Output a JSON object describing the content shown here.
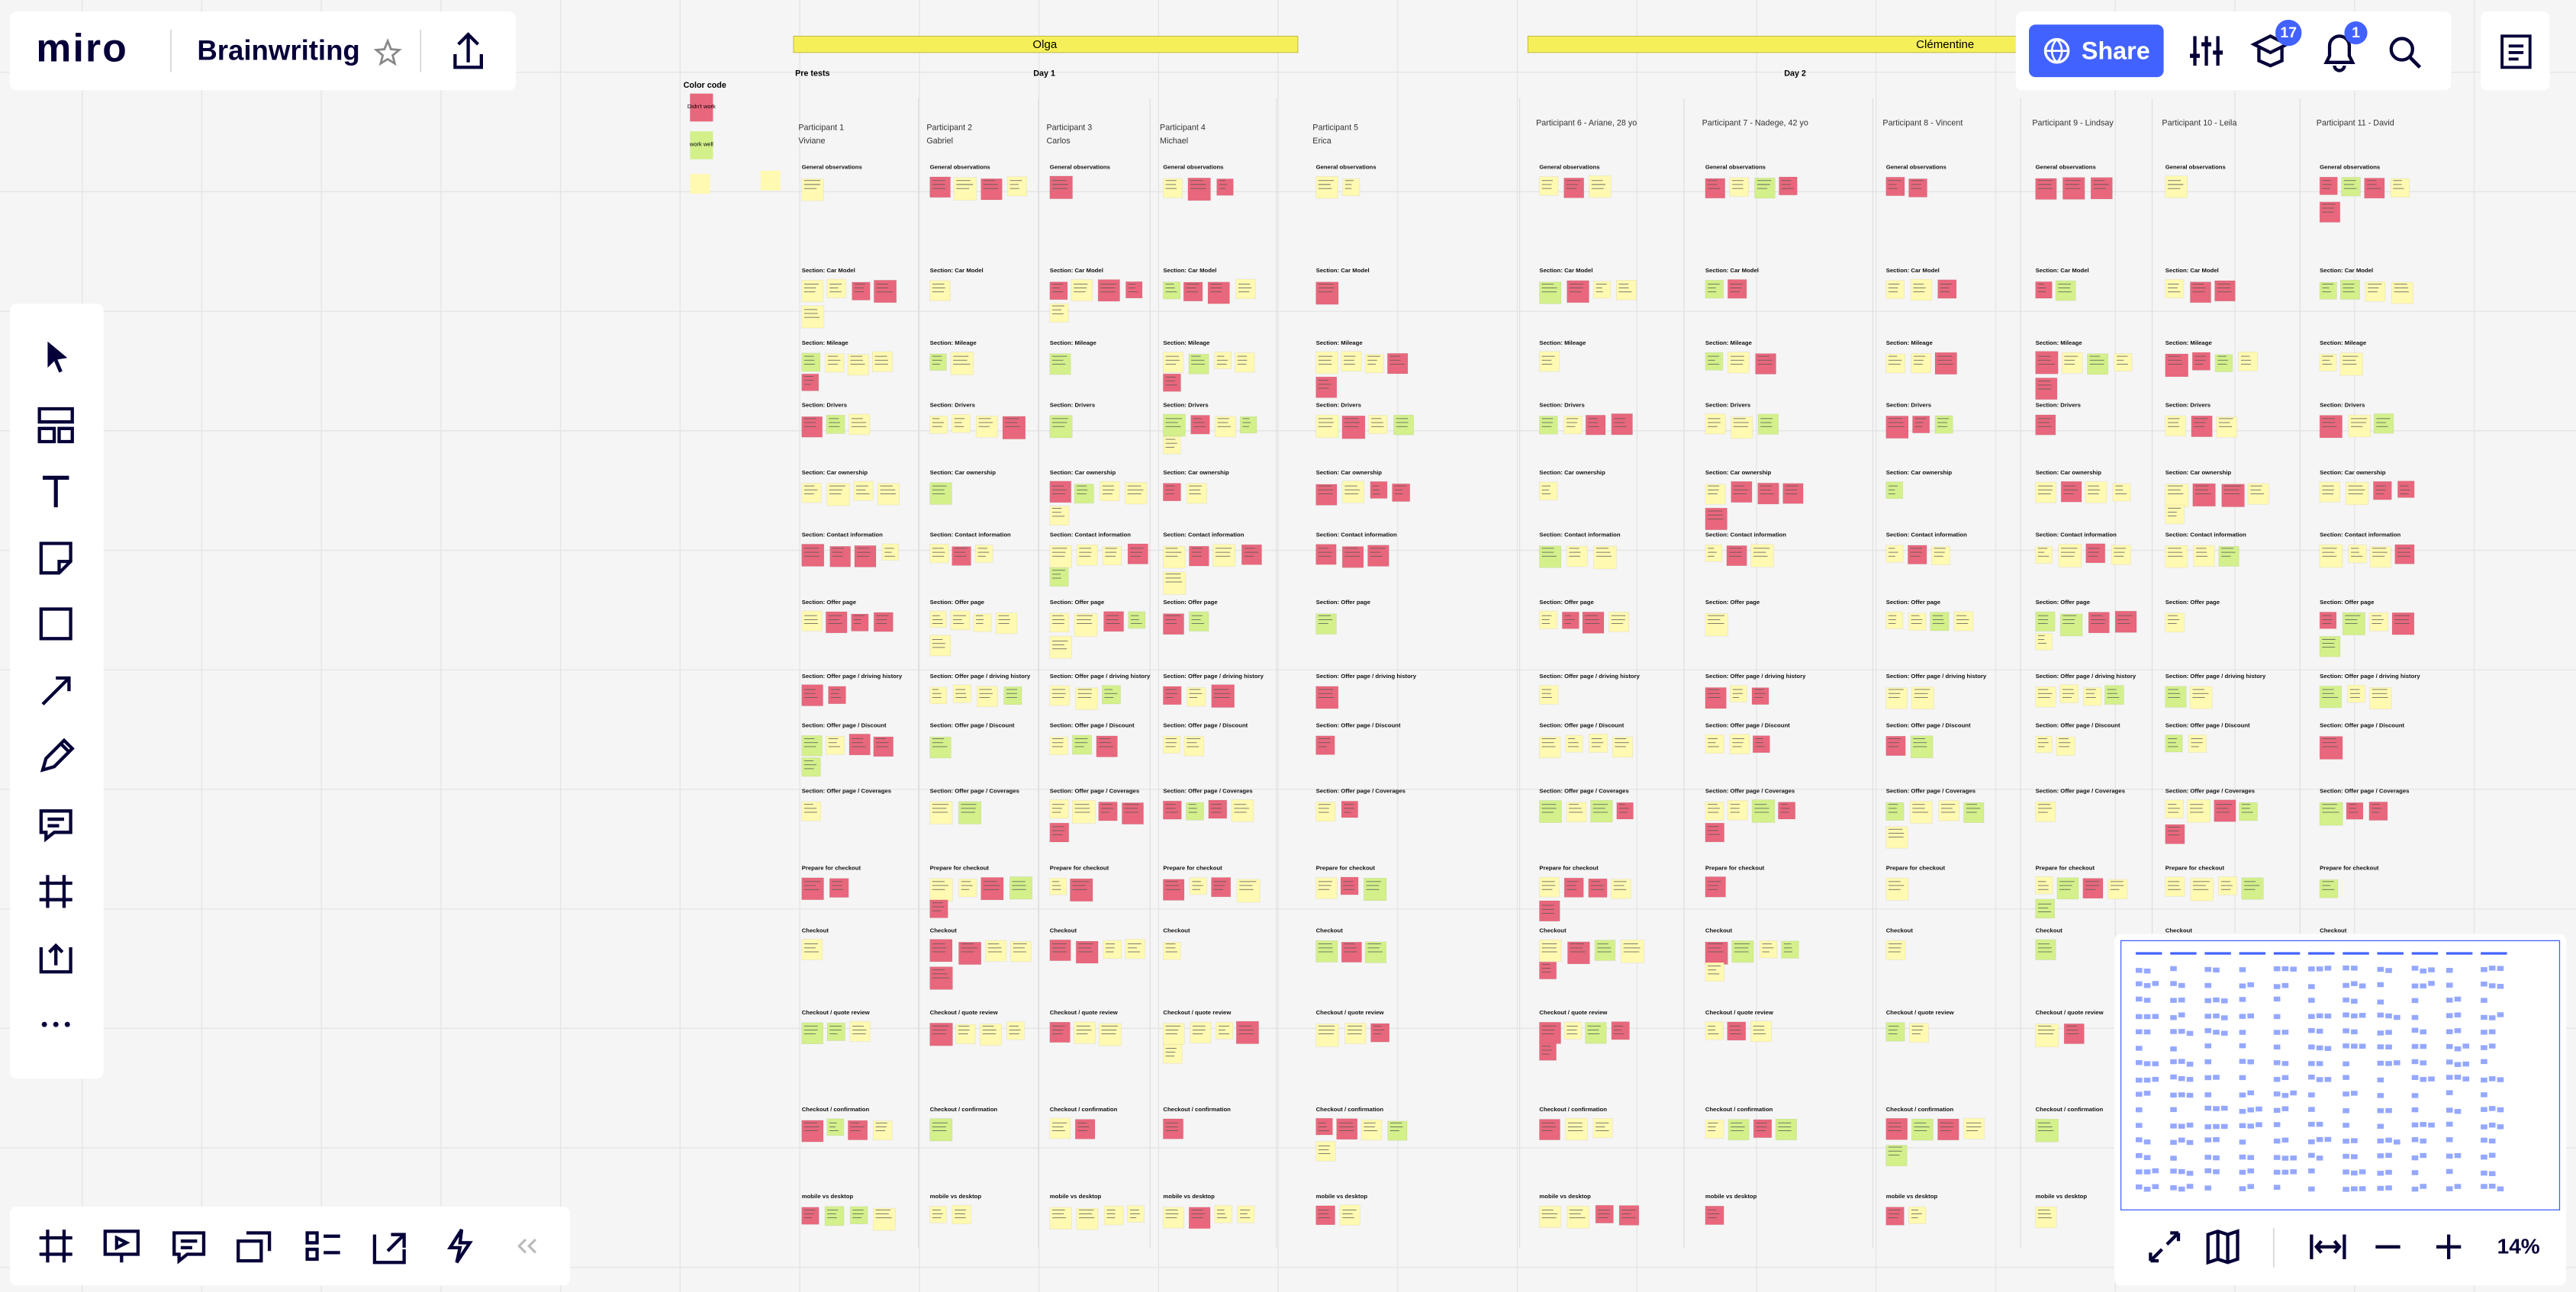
{
  "header": {
    "logo": "miro",
    "board_title": "Brainwriting"
  },
  "toolbar": {
    "share": "Share",
    "badges": [
      17,
      1
    ]
  },
  "zoom": "14%",
  "board": {
    "facilitators": [
      "Olga",
      "Clémentine"
    ],
    "phases": [
      "Pre tests",
      "Day 1",
      "Day 2"
    ],
    "color_code": {
      "title": "Color code",
      "items": [
        "Didn't work",
        "work well"
      ]
    },
    "participants": [
      {
        "label": "Participant 1",
        "name": "Viviane"
      },
      {
        "label": "Participant 2",
        "name": "Gabriel"
      },
      {
        "label": "Participant 3",
        "name": "Carlos"
      },
      {
        "label": "Participant 4",
        "name": "Michael"
      },
      {
        "label": "Participant 5",
        "name": "Erica"
      },
      {
        "label": "Participant 6 - Ariane, 28 yo"
      },
      {
        "label": "Participant 7 - Nadege, 42 yo"
      },
      {
        "label": "Participant 8 - Vincent"
      },
      {
        "label": "Participant 9 - Lindsay"
      },
      {
        "label": "Participant 10 - Leila"
      },
      {
        "label": "Participant 11 - David"
      }
    ],
    "sections": [
      "General observations",
      "Section: Car Model",
      "Section: Mileage",
      "Section: Drivers",
      "Section: Car ownership",
      "Section: Contact information",
      "Section: Offer page",
      "Section: Offer page / driving history",
      "Section: Offer page / Discount",
      "Section: Offer page / Coverages",
      "Prepare for checkout",
      "Checkout",
      "Checkout / quote review",
      "Checkout / confirmation",
      "mobile vs desktop"
    ]
  }
}
